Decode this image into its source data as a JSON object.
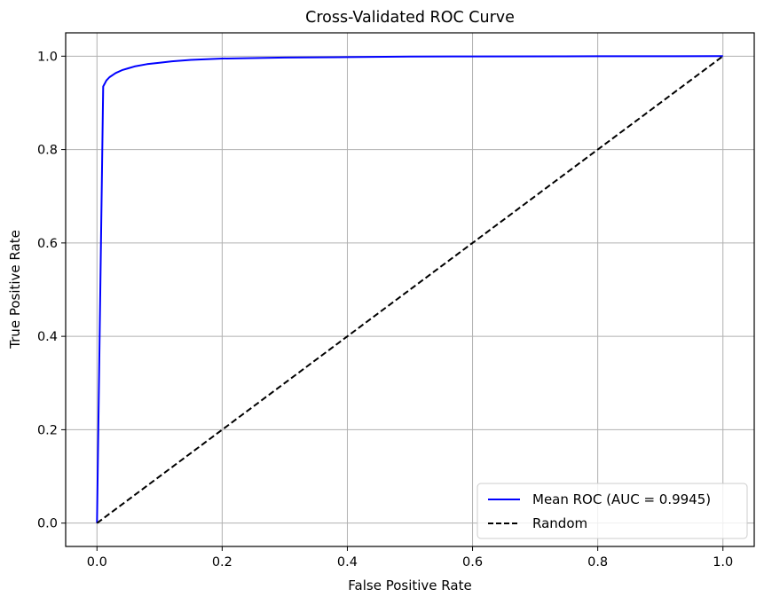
{
  "chart_data": {
    "type": "line",
    "title": "Cross-Validated ROC Curve",
    "xlabel": "False Positive Rate",
    "ylabel": "True Positive Rate",
    "xlim": [
      -0.05,
      1.05
    ],
    "ylim": [
      -0.05,
      1.05
    ],
    "xticks": [
      0.0,
      0.2,
      0.4,
      0.6,
      0.8,
      1.0
    ],
    "yticks": [
      0.0,
      0.2,
      0.4,
      0.6,
      0.8,
      1.0
    ],
    "xtick_labels": [
      "0.0",
      "0.2",
      "0.4",
      "0.6",
      "0.8",
      "1.0"
    ],
    "ytick_labels": [
      "0.0",
      "0.2",
      "0.4",
      "0.6",
      "0.8",
      "1.0"
    ],
    "grid": true,
    "legend_position": "lower-right",
    "series": [
      {
        "name": "Mean ROC (AUC = 0.9945)",
        "color": "#0000ff",
        "style": "solid",
        "x": [
          0.0,
          0.01,
          0.015,
          0.02,
          0.03,
          0.04,
          0.05,
          0.06,
          0.08,
          0.1,
          0.12,
          0.15,
          0.2,
          0.3,
          0.4,
          0.5,
          0.6,
          0.8,
          1.0
        ],
        "y": [
          0.0,
          0.935,
          0.948,
          0.955,
          0.964,
          0.97,
          0.974,
          0.978,
          0.983,
          0.986,
          0.989,
          0.992,
          0.995,
          0.997,
          0.998,
          0.999,
          0.9995,
          0.9998,
          1.0
        ]
      },
      {
        "name": "Random",
        "color": "#000000",
        "style": "dashed",
        "x": [
          0.0,
          1.0
        ],
        "y": [
          0.0,
          1.0
        ]
      }
    ]
  }
}
